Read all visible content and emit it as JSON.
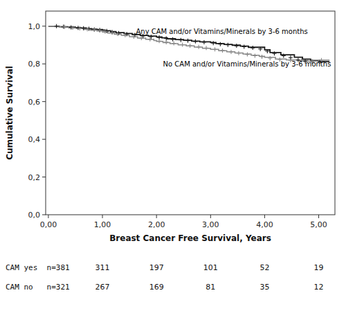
{
  "chart_data": {
    "type": "step",
    "xlabel": "Breast Cancer Free Survival, Years",
    "ylabel": "Cumulative Survival",
    "xlim": [
      -0.05,
      5.3
    ],
    "ylim": [
      0.0,
      1.08
    ],
    "xticks": [
      {
        "value": 0.0,
        "label": "0,00"
      },
      {
        "value": 1.0,
        "label": "1,00"
      },
      {
        "value": 2.0,
        "label": "2,00"
      },
      {
        "value": 3.0,
        "label": "3,00"
      },
      {
        "value": 4.0,
        "label": "4,00"
      },
      {
        "value": 5.0,
        "label": "5,00"
      }
    ],
    "yticks": [
      {
        "value": 0.0,
        "label": "0,0"
      },
      {
        "value": 0.2,
        "label": "0,2"
      },
      {
        "value": 0.4,
        "label": "0,4"
      },
      {
        "value": 0.6,
        "label": "0,6"
      },
      {
        "value": 0.8,
        "label": "0,8"
      },
      {
        "value": 1.0,
        "label": "1,0"
      }
    ],
    "grid": false,
    "series": [
      {
        "type": "step",
        "color": "#1a1a1a",
        "x": [
          0.0,
          0.1,
          0.2,
          0.35,
          0.5,
          0.6,
          0.7,
          0.8,
          0.9,
          1.0,
          1.05,
          1.15,
          1.25,
          1.4,
          1.55,
          1.7,
          1.85,
          2.0,
          2.1,
          2.2,
          2.35,
          2.5,
          2.65,
          2.8,
          3.0,
          3.1,
          3.25,
          3.4,
          3.55,
          3.7,
          4.0,
          4.1,
          4.3,
          4.55,
          4.7,
          4.85,
          5.0,
          5.2
        ],
        "values": [
          1.0,
          1.0,
          0.997,
          0.995,
          0.992,
          0.99,
          0.987,
          0.984,
          0.982,
          0.979,
          0.976,
          0.971,
          0.966,
          0.961,
          0.956,
          0.951,
          0.947,
          0.943,
          0.938,
          0.933,
          0.929,
          0.925,
          0.921,
          0.917,
          0.913,
          0.908,
          0.903,
          0.899,
          0.894,
          0.888,
          0.875,
          0.86,
          0.848,
          0.835,
          0.825,
          0.818,
          0.812,
          0.812
        ]
      },
      {
        "type": "step",
        "color": "#888888",
        "x": [
          0.0,
          0.12,
          0.25,
          0.38,
          0.52,
          0.65,
          0.78,
          0.9,
          1.0,
          1.1,
          1.22,
          1.35,
          1.5,
          1.65,
          1.8,
          1.95,
          2.0,
          2.12,
          2.25,
          2.4,
          2.55,
          2.7,
          2.85,
          3.0,
          3.15,
          3.3,
          3.45,
          3.6,
          3.75,
          3.9,
          4.0,
          4.2,
          4.4,
          4.6,
          4.8,
          5.0,
          5.2
        ],
        "values": [
          1.0,
          0.997,
          0.994,
          0.99,
          0.987,
          0.983,
          0.978,
          0.974,
          0.969,
          0.963,
          0.957,
          0.951,
          0.944,
          0.937,
          0.93,
          0.924,
          0.919,
          0.913,
          0.907,
          0.901,
          0.895,
          0.889,
          0.883,
          0.877,
          0.87,
          0.864,
          0.858,
          0.852,
          0.846,
          0.84,
          0.835,
          0.826,
          0.821,
          0.818,
          0.815,
          0.82,
          0.82
        ]
      },
      {
        "type": "scatter",
        "marker": "plus",
        "color": "#1a1a1a",
        "x": [
          0.15,
          0.28,
          0.42,
          0.55,
          0.65,
          0.75,
          0.85,
          0.95,
          1.08,
          1.18,
          1.3,
          1.45,
          1.6,
          1.75,
          1.9,
          2.05,
          2.18,
          2.3,
          2.45,
          2.58,
          2.72,
          2.88,
          3.05,
          3.18,
          3.32,
          3.48,
          3.62,
          3.78,
          3.92,
          4.05,
          4.18,
          4.35,
          4.48,
          4.62,
          4.75,
          4.88,
          5.02
        ],
        "values": [
          1.0,
          0.997,
          0.994,
          0.991,
          0.989,
          0.986,
          0.983,
          0.98,
          0.974,
          0.969,
          0.963,
          0.958,
          0.953,
          0.948,
          0.944,
          0.94,
          0.935,
          0.93,
          0.927,
          0.923,
          0.919,
          0.915,
          0.91,
          0.905,
          0.901,
          0.896,
          0.891,
          0.885,
          0.879,
          0.867,
          0.855,
          0.843,
          0.833,
          0.821,
          0.814,
          0.812,
          0.812
        ]
      },
      {
        "type": "scatter",
        "marker": "plus",
        "color": "#888888",
        "x": [
          0.3,
          0.45,
          0.58,
          0.72,
          0.85,
          0.95,
          1.05,
          1.18,
          1.28,
          1.42,
          1.58,
          1.72,
          1.88,
          2.05,
          2.18,
          2.32,
          2.48,
          2.62,
          2.78,
          2.92,
          3.08,
          3.22,
          3.38,
          3.52,
          3.68,
          3.82,
          3.95,
          4.1,
          4.28,
          4.48,
          4.68,
          4.88,
          5.05
        ],
        "values": [
          0.996,
          0.992,
          0.988,
          0.984,
          0.981,
          0.977,
          0.971,
          0.965,
          0.959,
          0.952,
          0.944,
          0.937,
          0.93,
          0.921,
          0.915,
          0.909,
          0.902,
          0.896,
          0.89,
          0.884,
          0.877,
          0.871,
          0.863,
          0.857,
          0.85,
          0.843,
          0.838,
          0.83,
          0.823,
          0.819,
          0.816,
          0.814,
          0.82
        ]
      }
    ],
    "annotations": [
      {
        "text": "Any CAM and/or Vitamins/Minerals by 3-6 months",
        "x": 1.62,
        "y": 0.975
      },
      {
        "text": "No CAM and/or Vitamins/Minerals by 3-6 months",
        "x": 2.12,
        "y": 0.8
      }
    ],
    "risk_table": {
      "x": [
        1.0,
        2.0,
        3.0,
        4.0,
        5.0
      ],
      "rows": [
        {
          "label": "CAM yes  n=381",
          "values": [
            311,
            197,
            101,
            52,
            19
          ]
        },
        {
          "label": "CAM no   n=321",
          "values": [
            267,
            169,
            81,
            35,
            12
          ]
        }
      ]
    }
  }
}
